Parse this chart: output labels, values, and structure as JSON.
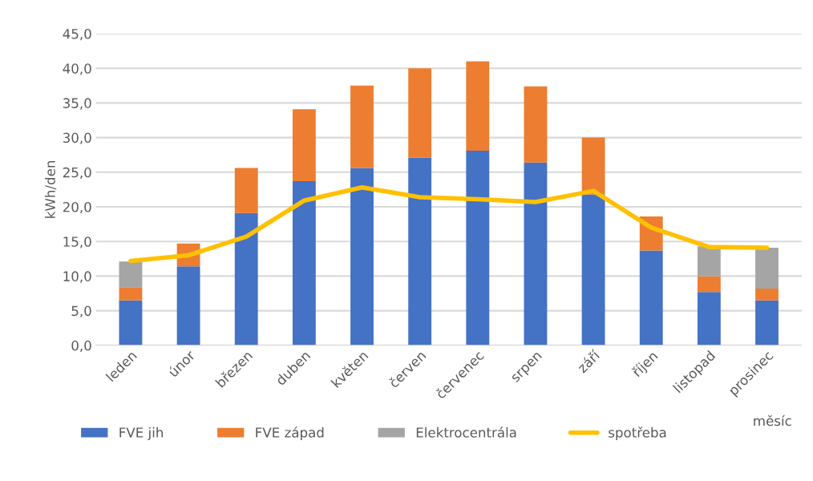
{
  "chart_data": {
    "type": "bar",
    "stacked": true,
    "ylabel": "kWh/den",
    "xlabel": "měsíc",
    "categories": [
      "leden",
      "únor",
      "březen",
      "duben",
      "květen",
      "červen",
      "červenec",
      "srpen",
      "září",
      "říjen",
      "listopad",
      "prosinec"
    ],
    "series": [
      {
        "name": "FVE jih",
        "color": "#4472c4",
        "values": [
          6.5,
          11.4,
          19.1,
          23.7,
          25.6,
          27.1,
          28.1,
          26.4,
          21.8,
          13.7,
          7.7,
          6.5
        ]
      },
      {
        "name": "FVE západ",
        "color": "#ed7d31",
        "values": [
          1.9,
          3.3,
          6.5,
          10.4,
          11.9,
          12.9,
          12.9,
          11.0,
          8.2,
          4.9,
          2.3,
          1.7
        ]
      },
      {
        "name": "Elektrocentrála",
        "color": "#a5a5a5",
        "values": [
          3.7,
          null,
          null,
          null,
          null,
          null,
          null,
          null,
          null,
          null,
          4.3,
          5.9
        ]
      },
      {
        "name": "spotřeba",
        "type": "line",
        "color": "#ffc000",
        "values": [
          12.2,
          13.0,
          15.7,
          20.9,
          22.8,
          21.4,
          21.1,
          20.7,
          22.3,
          17.0,
          14.2,
          14.1
        ]
      }
    ],
    "ylim": [
      0,
      45
    ],
    "yticks": [
      {
        "value": 0,
        "label": "0,0"
      },
      {
        "value": 5,
        "label": "5,0"
      },
      {
        "value": 10,
        "label": "10,0"
      },
      {
        "value": 15,
        "label": "15,0"
      },
      {
        "value": 20,
        "label": "20,0"
      },
      {
        "value": 25,
        "label": "25,0"
      },
      {
        "value": 30,
        "label": "30,0"
      },
      {
        "value": 35,
        "label": "35,0"
      },
      {
        "value": 40,
        "label": "40,0"
      },
      {
        "value": 45,
        "label": "45,0"
      }
    ],
    "grid": "y",
    "legend": "bottom",
    "marker": "none",
    "line_style": "solid"
  }
}
